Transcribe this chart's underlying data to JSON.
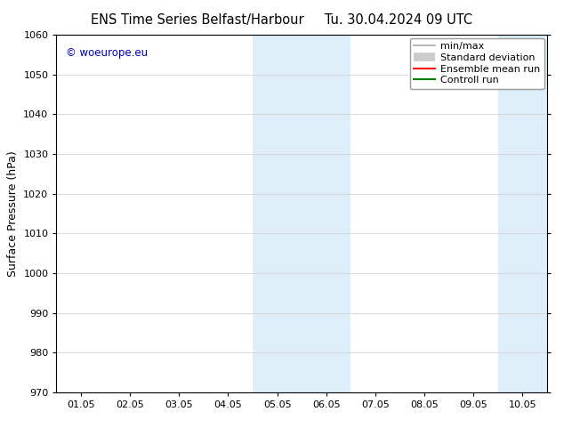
{
  "title_left": "ENS Time Series Belfast/Harbour",
  "title_right": "Tu. 30.04.2024 09 UTC",
  "ylabel": "Surface Pressure (hPa)",
  "ylim": [
    970,
    1060
  ],
  "yticks": [
    970,
    980,
    990,
    1000,
    1010,
    1020,
    1030,
    1040,
    1050,
    1060
  ],
  "xtick_labels": [
    "01.05",
    "02.05",
    "03.05",
    "04.05",
    "05.05",
    "06.05",
    "07.05",
    "08.05",
    "09.05",
    "10.05"
  ],
  "xtick_positions": [
    0,
    1,
    2,
    3,
    4,
    5,
    6,
    7,
    8,
    9
  ],
  "xlim": [
    -0.5,
    9.5
  ],
  "shaded_regions": [
    {
      "x_start": 3.5,
      "x_end": 5.5,
      "color": "#ddeef8"
    },
    {
      "x_start": 8.5,
      "x_end": 9.5,
      "color": "#ddeef8"
    }
  ],
  "watermark_text": "© woeurope.eu",
  "watermark_color": "#0000bb",
  "legend_entries": [
    {
      "label": "min/max",
      "color": "#aaaaaa",
      "lw": 1.2,
      "style": "solid"
    },
    {
      "label": "Standard deviation",
      "color": "#cccccc",
      "lw": 7,
      "style": "solid"
    },
    {
      "label": "Ensemble mean run",
      "color": "#ff0000",
      "lw": 1.5,
      "style": "solid"
    },
    {
      "label": "Controll run",
      "color": "#008000",
      "lw": 1.5,
      "style": "solid"
    }
  ],
  "background_color": "#ffffff",
  "grid_color": "#cccccc",
  "title_fontsize": 10.5,
  "label_fontsize": 9,
  "tick_fontsize": 8,
  "legend_fontsize": 8
}
